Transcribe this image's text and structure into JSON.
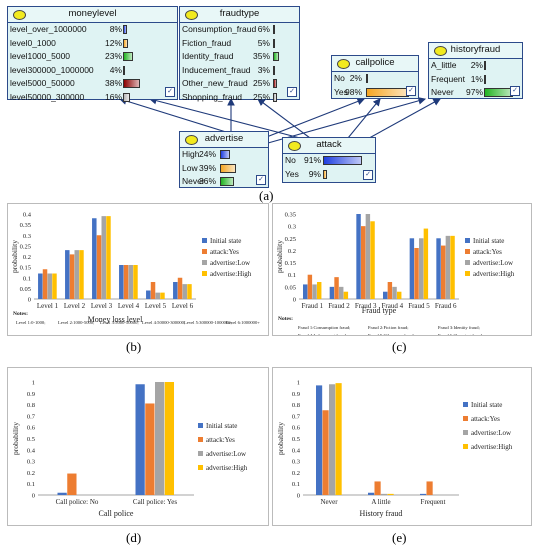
{
  "network": {
    "caption": "(a)",
    "nodes": [
      {
        "id": "moneylevel",
        "title": "moneylevel",
        "rows": [
          {
            "label": "level_over_1000000",
            "pct": "8%",
            "value": 8,
            "color": "#1f3ee0"
          },
          {
            "label": "level0_1000",
            "pct": "12%",
            "value": 12,
            "color": "#f5a623"
          },
          {
            "label": "level1000_5000",
            "pct": "23%",
            "value": 23,
            "color": "#22b322"
          },
          {
            "label": "level300000_1000000",
            "pct": "4%",
            "value": 4,
            "color": "#2a8cff"
          },
          {
            "label": "level5000_50000",
            "pct": "38%",
            "value": 38,
            "color": "#8b0000"
          },
          {
            "label": "level50000_300000",
            "pct": "16%",
            "value": 16,
            "color": "#b8b8b8"
          }
        ]
      },
      {
        "id": "fraudtype",
        "title": "fraudtype",
        "rows": [
          {
            "label": "Consumption_fraud",
            "pct": "6%",
            "value": 6,
            "color": "#1f3ee0"
          },
          {
            "label": "Fiction_fraud",
            "pct": "5%",
            "value": 5,
            "color": "#f5a623"
          },
          {
            "label": "Identity_fraud",
            "pct": "35%",
            "value": 35,
            "color": "#22b322"
          },
          {
            "label": "Inducement_fraud",
            "pct": "3%",
            "value": 3,
            "color": "#2a8cff"
          },
          {
            "label": "Other_new_fraud",
            "pct": "25%",
            "value": 25,
            "color": "#8b0000"
          },
          {
            "label": "Shopping_fraud",
            "pct": "25%",
            "value": 25,
            "color": "#b8b8b8"
          }
        ]
      },
      {
        "id": "callpolice",
        "title": "callpolice",
        "rows": [
          {
            "label": "No",
            "pct": "2%",
            "value": 2,
            "color": "#1f3ee0"
          },
          {
            "label": "Yes",
            "pct": "98%",
            "value": 98,
            "color": "#f5a623"
          }
        ]
      },
      {
        "id": "historyfraud",
        "title": "historyfraud",
        "rows": [
          {
            "label": "A_little",
            "pct": "2%",
            "value": 2,
            "color": "#1f3ee0"
          },
          {
            "label": "Frequent",
            "pct": "1%",
            "value": 1,
            "color": "#f5a623"
          },
          {
            "label": "Never",
            "pct": "97%",
            "value": 97,
            "color": "#22b322"
          }
        ]
      },
      {
        "id": "advertise",
        "title": "advertise",
        "rows": [
          {
            "label": "High",
            "pct": "24%",
            "value": 24,
            "color": "#1f3ee0"
          },
          {
            "label": "Low",
            "pct": "39%",
            "value": 39,
            "color": "#f5a623"
          },
          {
            "label": "Never",
            "pct": "36%",
            "value": 36,
            "color": "#22b322"
          }
        ]
      },
      {
        "id": "attack",
        "title": "attack",
        "rows": [
          {
            "label": "No",
            "pct": "91%",
            "value": 91,
            "color": "#1f3ee0"
          },
          {
            "label": "Yes",
            "pct": "9%",
            "value": 9,
            "color": "#f5a623"
          }
        ]
      }
    ]
  },
  "legend_labels": [
    "Initial state",
    "attack:Yes",
    "advertise:Low",
    "advertise:High"
  ],
  "series_colors": [
    "#4472c4",
    "#ed7d31",
    "#a5a5a5",
    "#ffc000"
  ],
  "chart_data": [
    {
      "id": "b",
      "caption": "(b)",
      "type": "bar",
      "categories": [
        "Level 1",
        "Level 2",
        "Level 3",
        "Level 4",
        "Level 5",
        "Level 6"
      ],
      "xlabel": "Money loss level",
      "ylabel": "probability",
      "ylim": [
        0,
        0.4
      ],
      "yticks": [
        "0",
        "0.05",
        "0.1",
        "0.15",
        "0.2",
        "0.25",
        "0.3",
        "0.35",
        "0.4"
      ],
      "series": [
        {
          "name": "Initial state",
          "values": [
            0.12,
            0.23,
            0.38,
            0.16,
            0.04,
            0.08
          ]
        },
        {
          "name": "attack:Yes",
          "values": [
            0.14,
            0.21,
            0.3,
            0.16,
            0.08,
            0.1
          ]
        },
        {
          "name": "advertise:Low",
          "values": [
            0.12,
            0.23,
            0.39,
            0.16,
            0.03,
            0.07
          ]
        },
        {
          "name": "advertise:High",
          "values": [
            0.12,
            0.23,
            0.39,
            0.16,
            0.03,
            0.07
          ]
        }
      ],
      "notes_title": "Notes:",
      "notes": [
        "Level 1:0-1000;",
        "Level 2:1000-5000;",
        "Level 3:5000-50000;",
        "Level 4:50000-300000;",
        "Level 5:300000-1000000;",
        "Level 6:1000000+"
      ]
    },
    {
      "id": "c",
      "caption": "(c)",
      "type": "bar",
      "categories": [
        "Fraud 1",
        "Fraud 2",
        "Fraud 3",
        "Fraud 4",
        "Fraud 5",
        "Fraud 6"
      ],
      "xlabel": "Fraud type",
      "ylabel": "probability",
      "ylim": [
        0,
        0.35
      ],
      "yticks": [
        "0",
        "0.05",
        "0.1",
        "0.15",
        "0.2",
        "0.25",
        "0.3",
        "0.35"
      ],
      "series": [
        {
          "name": "Initial state",
          "values": [
            0.06,
            0.05,
            0.35,
            0.03,
            0.25,
            0.25
          ]
        },
        {
          "name": "attack:Yes",
          "values": [
            0.1,
            0.09,
            0.3,
            0.07,
            0.21,
            0.22
          ]
        },
        {
          "name": "advertise:Low",
          "values": [
            0.06,
            0.05,
            0.35,
            0.05,
            0.25,
            0.26
          ]
        },
        {
          "name": "advertise:High",
          "values": [
            0.07,
            0.03,
            0.32,
            0.03,
            0.29,
            0.26
          ]
        }
      ],
      "notes_title": "Notes:",
      "notes": [
        "Fraud 1:Consumption fraud;",
        "Fraud 2:Fiction fraud;",
        "Fraud 3:Identity fraud;",
        "Fraud 4:Inducement fraud;",
        "Fraud 5:Other new fraud;",
        "Fraud 6:Shopping fraud"
      ]
    },
    {
      "id": "d",
      "caption": "(d)",
      "type": "bar",
      "categories": [
        "Call police: No",
        "Call police: Yes"
      ],
      "xlabel": "Call police",
      "ylabel": "probability",
      "ylim": [
        0,
        1
      ],
      "yticks": [
        "0",
        "0.1",
        "0.2",
        "0.3",
        "0.4",
        "0.5",
        "0.6",
        "0.7",
        "0.8",
        "0.9",
        "1"
      ],
      "series": [
        {
          "name": "Initial state",
          "values": [
            0.02,
            0.98
          ]
        },
        {
          "name": "attack:Yes",
          "values": [
            0.19,
            0.81
          ]
        },
        {
          "name": "advertise:Low",
          "values": [
            0.0,
            1.0
          ]
        },
        {
          "name": "advertise:High",
          "values": [
            0.0,
            1.0
          ]
        }
      ]
    },
    {
      "id": "e",
      "caption": "(e)",
      "type": "bar",
      "categories": [
        "Never",
        "A little",
        "Frequent"
      ],
      "xlabel": "History fraud",
      "ylabel": "probability",
      "ylim": [
        0,
        1
      ],
      "yticks": [
        "0",
        "0.1",
        "0.2",
        "0.3",
        "0.4",
        "0.5",
        "0.6",
        "0.7",
        "0.8",
        "0.9",
        "1"
      ],
      "series": [
        {
          "name": "Initial state",
          "values": [
            0.97,
            0.02,
            0.01
          ]
        },
        {
          "name": "attack:Yes",
          "values": [
            0.75,
            0.12,
            0.12
          ]
        },
        {
          "name": "advertise:Low",
          "values": [
            0.98,
            0.01,
            0.0
          ]
        },
        {
          "name": "advertise:High",
          "values": [
            0.99,
            0.01,
            0.0
          ]
        }
      ]
    }
  ]
}
